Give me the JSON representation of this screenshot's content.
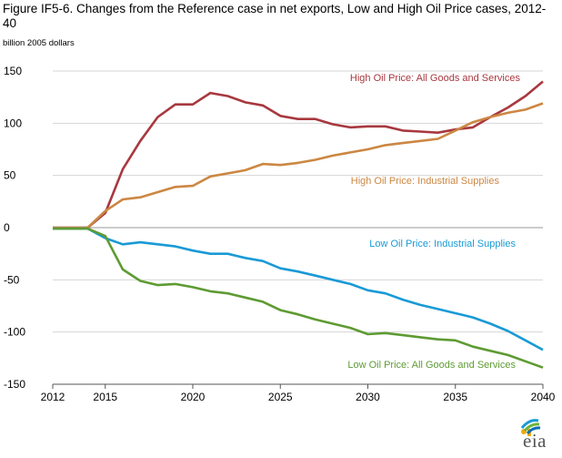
{
  "title": "Figure IF5-6. Changes from the Reference case in net exports, Low and High Oil Price cases, 2012-40",
  "logo_text": "eia",
  "chart_data": {
    "type": "line",
    "title": "Figure IF5-6. Changes from the Reference case in net exports, Low and High Oil Price cases, 2012-40",
    "ylabel": "billion 2005 dollars",
    "xlim": [
      2012,
      2040
    ],
    "ylim": [
      -150,
      150
    ],
    "x_ticks": [
      2012,
      2015,
      2020,
      2025,
      2030,
      2035,
      2040
    ],
    "y_ticks": [
      150,
      100,
      50,
      0,
      -50,
      -100,
      -150
    ],
    "grid": "horizontal",
    "x": [
      2012,
      2013,
      2014,
      2015,
      2016,
      2017,
      2018,
      2019,
      2020,
      2021,
      2022,
      2023,
      2024,
      2025,
      2026,
      2027,
      2028,
      2029,
      2030,
      2031,
      2032,
      2033,
      2034,
      2035,
      2036,
      2037,
      2038,
      2039,
      2040
    ],
    "series": [
      {
        "name": "High Oil Price: All Goods and Services",
        "color": "#a8383f",
        "values": [
          0,
          0,
          0,
          14,
          56,
          83,
          106,
          118,
          118,
          129,
          126,
          120,
          117,
          107,
          104,
          104,
          99,
          96,
          97,
          97,
          93,
          92,
          91,
          94,
          96,
          106,
          115,
          126,
          140
        ]
      },
      {
        "name": "High Oil Price: Industrial  Supplies",
        "color": "#cc8742",
        "values": [
          0,
          0,
          0,
          16,
          27,
          29,
          34,
          39,
          40,
          49,
          52,
          55,
          61,
          60,
          62,
          65,
          69,
          72,
          75,
          79,
          81,
          83,
          85,
          93,
          101,
          106,
          110,
          113,
          119
        ]
      },
      {
        "name": "Low Oil Price: Industrial  Supplies",
        "color": "#1a9ad6",
        "values": [
          -1,
          -1,
          -1,
          -10,
          -16,
          -14,
          -16,
          -18,
          -22,
          -25,
          -25,
          -29,
          -32,
          -39,
          -42,
          -46,
          -50,
          -54,
          -60,
          -63,
          -69,
          -74,
          -78,
          -82,
          -86,
          -92,
          -99,
          -108,
          -117
        ]
      },
      {
        "name": "Low Oil Price: All Goods and Services",
        "color": "#5e9b33",
        "values": [
          -1,
          -1,
          -1,
          -8,
          -40,
          -51,
          -55,
          -54,
          -57,
          -61,
          -63,
          -67,
          -71,
          -79,
          -83,
          -88,
          -92,
          -96,
          -102,
          -101,
          -103,
          -105,
          -107,
          -108,
          -114,
          -118,
          -122,
          -128,
          -134
        ]
      }
    ],
    "annotations": [
      {
        "text": "High Oil Price: All Goods and Services",
        "series": 0
      },
      {
        "text": "High Oil Price: Industrial  Supplies",
        "series": 1
      },
      {
        "text": "Low Oil Price: Industrial  Supplies",
        "series": 2
      },
      {
        "text": "Low Oil Price: All Goods and Services",
        "series": 3
      }
    ]
  }
}
